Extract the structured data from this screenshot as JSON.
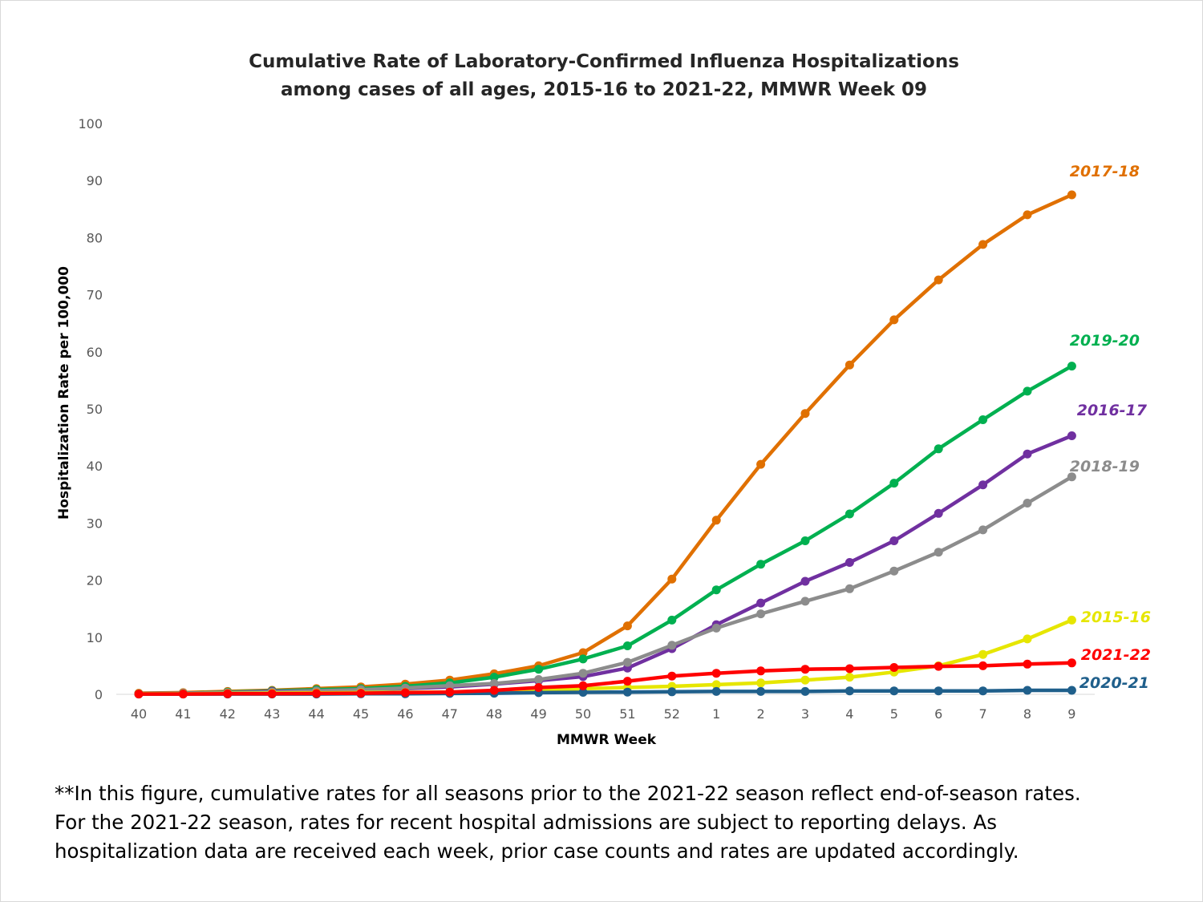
{
  "chart_data": {
    "type": "line",
    "title": "Cumulative Rate of Laboratory-Confirmed Influenza Hospitalizations",
    "subtitle": "among cases of all ages, 2015-16 to 2021-22, MMWR  Week 09",
    "xlabel": "MMWR Week",
    "ylabel": "Hospitalization  Rate per 100,000",
    "ylim": [
      0,
      100
    ],
    "yticks": [
      "0",
      "10",
      "20",
      "30",
      "40",
      "50",
      "60",
      "70",
      "80",
      "90",
      "100"
    ],
    "categories": [
      "40",
      "41",
      "42",
      "43",
      "44",
      "45",
      "46",
      "47",
      "48",
      "49",
      "50",
      "51",
      "52",
      "1",
      "2",
      "3",
      "4",
      "5",
      "6",
      "7",
      "8",
      "9"
    ],
    "grid": false,
    "legend": "inline labels at right end of each series",
    "series": [
      {
        "name": "2015-16",
        "color": "#e6e600",
        "values": [
          0.1,
          0.1,
          0.15,
          0.2,
          0.25,
          0.3,
          0.35,
          0.4,
          0.5,
          0.7,
          1.0,
          1.2,
          1.4,
          1.7,
          2.0,
          2.5,
          3.0,
          3.9,
          5.0,
          7.0,
          9.7,
          13.0
        ]
      },
      {
        "name": "2016-17",
        "color": "#7030a0",
        "values": [
          0.1,
          0.2,
          0.3,
          0.5,
          0.6,
          0.8,
          1.0,
          1.3,
          1.8,
          2.4,
          3.1,
          4.6,
          8.0,
          12.2,
          16.0,
          19.8,
          23.1,
          26.9,
          31.7,
          36.7,
          42.1,
          45.3
        ]
      },
      {
        "name": "2017-18",
        "color": "#e07000",
        "values": [
          0.2,
          0.3,
          0.5,
          0.7,
          1.0,
          1.3,
          1.8,
          2.5,
          3.6,
          5.0,
          7.3,
          12.0,
          20.2,
          30.5,
          40.3,
          49.2,
          57.7,
          65.6,
          72.6,
          78.8,
          84.0,
          87.5
        ]
      },
      {
        "name": "2018-19",
        "color": "#8c8c8c",
        "values": [
          0.1,
          0.2,
          0.3,
          0.4,
          0.6,
          0.8,
          1.1,
          1.5,
          1.9,
          2.6,
          3.7,
          5.6,
          8.6,
          11.6,
          14.1,
          16.3,
          18.5,
          21.6,
          24.9,
          28.8,
          33.5,
          38.1
        ]
      },
      {
        "name": "2019-20",
        "color": "#00b050",
        "values": [
          0.1,
          0.2,
          0.4,
          0.6,
          0.8,
          1.0,
          1.4,
          2.0,
          3.0,
          4.4,
          6.2,
          8.5,
          13.0,
          18.3,
          22.8,
          26.9,
          31.6,
          37.0,
          43.0,
          48.1,
          53.1,
          57.5
        ]
      },
      {
        "name": "2020-21",
        "color": "#1f5f8b",
        "values": [
          0.05,
          0.05,
          0.05,
          0.05,
          0.05,
          0.1,
          0.1,
          0.15,
          0.2,
          0.3,
          0.35,
          0.4,
          0.45,
          0.5,
          0.5,
          0.5,
          0.6,
          0.6,
          0.6,
          0.6,
          0.7,
          0.7
        ]
      },
      {
        "name": "2021-22",
        "color": "#ff0000",
        "values": [
          0.05,
          0.05,
          0.1,
          0.1,
          0.15,
          0.2,
          0.3,
          0.4,
          0.7,
          1.2,
          1.5,
          2.3,
          3.2,
          3.7,
          4.1,
          4.4,
          4.5,
          4.7,
          4.9,
          5.0,
          5.3,
          5.5
        ]
      }
    ]
  },
  "footnote": {
    "line1": "**In this figure, cumulative rates for all seasons prior to the 2021-22 season reflect end-of-season rates.",
    "line2": "For the 2021-22 season, rates for recent hospital admissions are subject to reporting delays. As",
    "line3": "hospitalization data are received each week, prior case counts and rates are updated accordingly."
  }
}
